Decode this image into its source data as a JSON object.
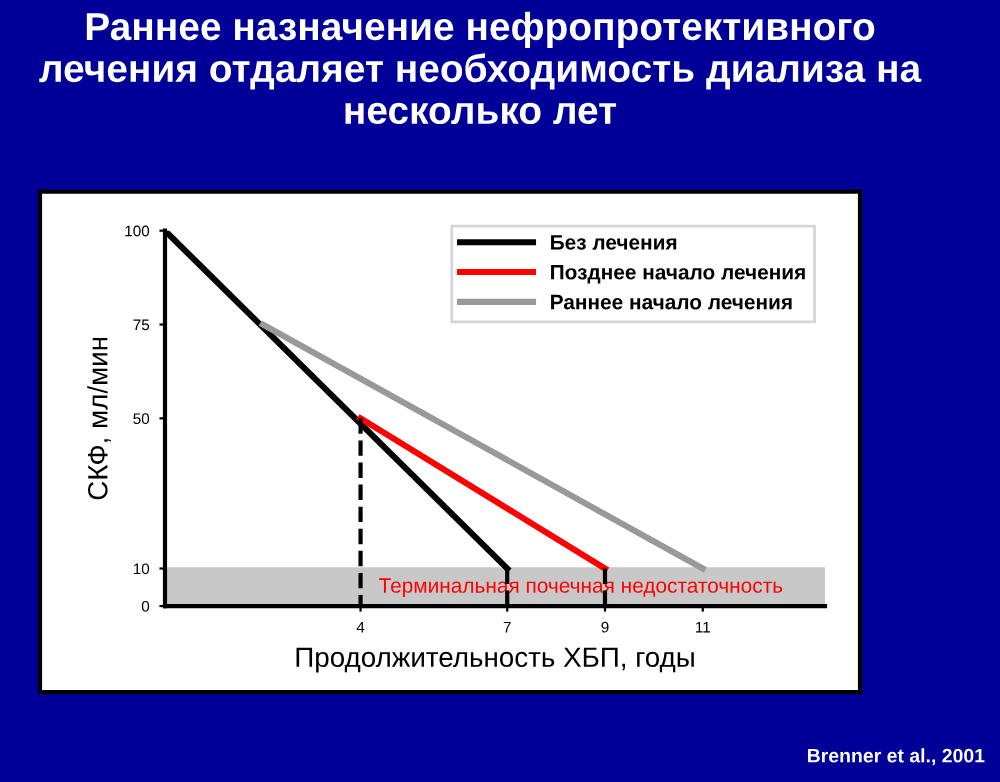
{
  "chart_data": {
    "type": "line",
    "title": "Раннее назначение нефропротективного лечения отдаляет необходимость диализа на несколько лет",
    "xlabel": "Продолжительность ХБП, годы",
    "ylabel": "СКФ, мл/мин",
    "series": [
      {
        "name": "Без лечения",
        "color": "#000000",
        "x": [
          0,
          7
        ],
        "values": [
          100,
          10
        ]
      },
      {
        "name": "Позднее начало лечения",
        "color": "#ff0000",
        "x": [
          4,
          9
        ],
        "values": [
          50,
          10
        ]
      },
      {
        "name": "Раннее начало лечения",
        "color": "#999999",
        "x": [
          2,
          11
        ],
        "values": [
          75,
          10
        ]
      },
      {
        "color": "#000000",
        "x": [
          4,
          4
        ],
        "values": [
          50,
          0
        ],
        "line_style": "dashed"
      },
      {
        "color": "#000000",
        "x": [
          7,
          7
        ],
        "values": [
          10,
          0
        ],
        "line_style": "dashed"
      },
      {
        "color": "#000000",
        "x": [
          9,
          9
        ],
        "values": [
          10,
          0
        ],
        "line_style": "dashed"
      }
    ],
    "bands": [
      {
        "axis": "y",
        "from": 0,
        "to": 10,
        "label": "Терминальная почечная недостаточность",
        "color": "#c8c8c8"
      }
    ],
    "xlim": [
      0,
      13.5
    ],
    "xticks": [
      4,
      7,
      9,
      11
    ],
    "ylim": [
      0,
      100
    ],
    "yticks": [
      0,
      10,
      50,
      75,
      100
    ],
    "grid": false,
    "legend": "top right",
    "annotations": [
      "Brenner et al., 2001"
    ]
  }
}
